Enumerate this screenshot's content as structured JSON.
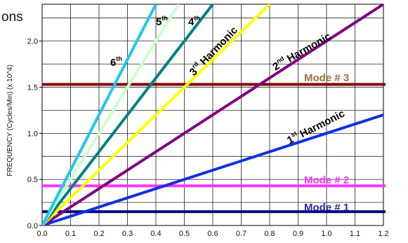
{
  "fragment_text": "ons",
  "chart_data": {
    "type": "line",
    "ylabel": "FREQUENCY (Cycles/Min) (x 10^4)",
    "xlim": [
      0,
      1.2
    ],
    "ylim": [
      0,
      2.4
    ],
    "x_ticks": [
      "0.0",
      "0.1",
      "0.2",
      "0.3",
      "0.4",
      "0.5",
      "0.6",
      "0.7",
      "0.8",
      "0.9",
      "1.0",
      "1.1",
      "1.2"
    ],
    "y_ticks": [
      "0.0",
      "0.5",
      "1.0",
      "1.5",
      "2.0"
    ],
    "grid": true,
    "series": [
      {
        "key": "h1",
        "label_main": "1",
        "label_sup": "st",
        "label_rest": " Harmonic",
        "color": "#1030e0",
        "x": [
          0,
          1.2
        ],
        "y": [
          0,
          1.2
        ]
      },
      {
        "key": "h2",
        "label_main": "2",
        "label_sup": "nd",
        "label_rest": " Harmonic",
        "color": "#800080",
        "x": [
          0,
          1.2
        ],
        "y": [
          0,
          2.4
        ]
      },
      {
        "key": "h3",
        "label_main": "3",
        "label_sup": "rd",
        "label_rest": " Harmonic",
        "color": "#ffff00",
        "x": [
          0,
          0.8
        ],
        "y": [
          0,
          2.4
        ]
      },
      {
        "key": "h4",
        "label_main": "4",
        "label_sup": "th",
        "label_rest": "",
        "color": "#008080",
        "x": [
          0,
          0.6
        ],
        "y": [
          0,
          2.4
        ]
      },
      {
        "key": "h5",
        "label_main": "5",
        "label_sup": "th",
        "label_rest": "",
        "color": "#ccffcc",
        "x": [
          0,
          0.48
        ],
        "y": [
          0,
          2.4
        ]
      },
      {
        "key": "h6",
        "label_main": "6",
        "label_sup": "th",
        "label_rest": "",
        "color": "#1ec8f0",
        "x": [
          0,
          0.4
        ],
        "y": [
          0,
          2.4
        ]
      }
    ],
    "modes": [
      {
        "key": "m1",
        "label": "Mode # 1",
        "value": 0.15,
        "color": "#000080",
        "label_color": "#2a2aa0"
      },
      {
        "key": "m2",
        "label": "Mode # 2",
        "value": 0.43,
        "color": "#ff33ff",
        "label_color": "#ff33ff"
      },
      {
        "key": "m3",
        "label": "Mode # 3",
        "value": 1.53,
        "color": "#800000",
        "label_color": "#a0703a"
      }
    ]
  }
}
